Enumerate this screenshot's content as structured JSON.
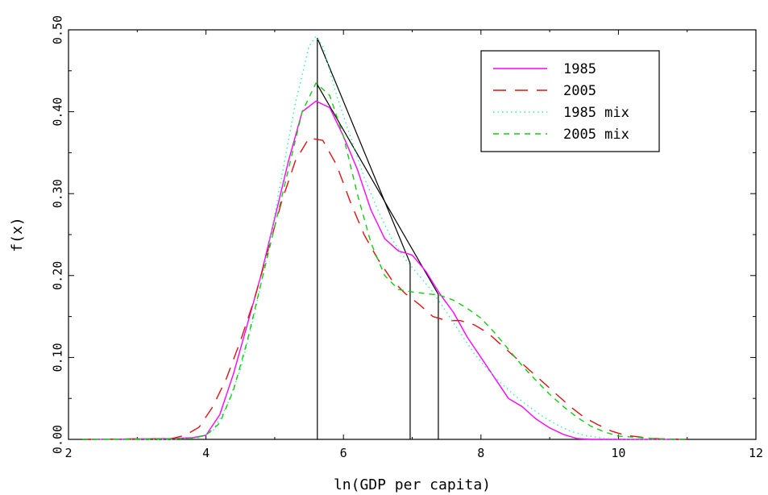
{
  "chart_data": {
    "type": "line",
    "title": "",
    "xlabel": "ln(GDP per capita)",
    "ylabel": "f(x)",
    "xlim": [
      2,
      12
    ],
    "ylim": [
      0,
      0.5
    ],
    "xticks": [
      2,
      4,
      6,
      8,
      10,
      12
    ],
    "xtick_labels": [
      "2",
      "4",
      "6",
      "8",
      "10",
      "12"
    ],
    "yticks": [
      0,
      0.1,
      0.2,
      0.3,
      0.4,
      0.5
    ],
    "ytick_labels": [
      "0.00",
      "0.10",
      "0.20",
      "0.30",
      "0.40",
      "0.50"
    ],
    "grid": false,
    "legend_position": "top-right",
    "series": [
      {
        "name": "1985",
        "color": "#ff00ff",
        "dash": "solid",
        "x": [
          2.2,
          3.5,
          3.8,
          4.0,
          4.2,
          4.4,
          4.6,
          4.8,
          5.0,
          5.2,
          5.4,
          5.6,
          5.8,
          6.0,
          6.2,
          6.4,
          6.6,
          6.8,
          7.0,
          7.2,
          7.4,
          7.6,
          7.8,
          8.0,
          8.2,
          8.4,
          8.6,
          8.8,
          9.0,
          9.2,
          9.4,
          9.6,
          10.0,
          11.0
        ],
        "y": [
          0,
          0.001,
          0.002,
          0.005,
          0.03,
          0.08,
          0.14,
          0.2,
          0.27,
          0.34,
          0.4,
          0.413,
          0.405,
          0.37,
          0.33,
          0.28,
          0.245,
          0.23,
          0.225,
          0.205,
          0.178,
          0.155,
          0.125,
          0.1,
          0.075,
          0.05,
          0.04,
          0.025,
          0.014,
          0.006,
          0.001,
          0,
          0,
          0
        ]
      },
      {
        "name": "2005",
        "color": "#dd1111",
        "dash": "long",
        "x": [
          2.2,
          3.5,
          3.7,
          3.9,
          4.1,
          4.3,
          4.5,
          4.7,
          4.9,
          5.1,
          5.3,
          5.5,
          5.7,
          5.9,
          6.1,
          6.3,
          6.5,
          6.7,
          6.9,
          7.1,
          7.3,
          7.5,
          7.7,
          7.9,
          8.1,
          8.3,
          8.5,
          8.7,
          8.9,
          9.1,
          9.3,
          9.5,
          9.7,
          9.9,
          10.1,
          10.5,
          11.0
        ],
        "y": [
          0,
          0.001,
          0.005,
          0.015,
          0.04,
          0.075,
          0.12,
          0.17,
          0.23,
          0.29,
          0.34,
          0.368,
          0.365,
          0.335,
          0.29,
          0.25,
          0.22,
          0.195,
          0.178,
          0.165,
          0.15,
          0.145,
          0.145,
          0.14,
          0.13,
          0.115,
          0.1,
          0.085,
          0.07,
          0.055,
          0.04,
          0.027,
          0.018,
          0.01,
          0.005,
          0.001,
          0
        ]
      },
      {
        "name": "1985 mix",
        "color": "#33ee99",
        "dash": "dot",
        "x": [
          2.2,
          3.5,
          3.9,
          4.1,
          4.3,
          4.5,
          4.7,
          4.9,
          5.1,
          5.3,
          5.5,
          5.6,
          5.7,
          5.9,
          6.1,
          6.3,
          6.5,
          6.7,
          6.9,
          7.1,
          7.3,
          7.5,
          7.7,
          7.9,
          8.1,
          8.3,
          8.5,
          8.7,
          8.9,
          9.1,
          9.3,
          9.5,
          9.8,
          10.5,
          11.0
        ],
        "y": [
          0,
          0.0,
          0.002,
          0.01,
          0.04,
          0.085,
          0.15,
          0.23,
          0.32,
          0.41,
          0.48,
          0.492,
          0.48,
          0.42,
          0.37,
          0.32,
          0.28,
          0.245,
          0.22,
          0.2,
          0.18,
          0.155,
          0.13,
          0.105,
          0.085,
          0.068,
          0.053,
          0.04,
          0.028,
          0.018,
          0.01,
          0.005,
          0.001,
          0,
          0
        ]
      },
      {
        "name": "2005 mix",
        "color": "#11cc11",
        "dash": "short",
        "x": [
          2.2,
          3.8,
          4.0,
          4.2,
          4.4,
          4.6,
          4.8,
          5.0,
          5.2,
          5.4,
          5.6,
          5.8,
          6.0,
          6.2,
          6.4,
          6.6,
          6.8,
          7.0,
          7.2,
          7.4,
          7.6,
          7.8,
          8.0,
          8.2,
          8.4,
          8.6,
          8.8,
          9.0,
          9.2,
          9.4,
          9.6,
          9.8,
          10.0,
          10.5,
          11.0
        ],
        "y": [
          0,
          0.001,
          0.005,
          0.02,
          0.06,
          0.12,
          0.19,
          0.26,
          0.33,
          0.4,
          0.435,
          0.42,
          0.37,
          0.3,
          0.24,
          0.2,
          0.183,
          0.18,
          0.178,
          0.176,
          0.17,
          0.16,
          0.148,
          0.13,
          0.11,
          0.09,
          0.072,
          0.055,
          0.04,
          0.027,
          0.016,
          0.009,
          0.004,
          0.001,
          0
        ]
      }
    ],
    "annotations": {
      "color": "#000000",
      "vertical_lines": [
        {
          "x": 5.62,
          "y": 0.49
        },
        {
          "x": 6.97,
          "y": 0.215
        },
        {
          "x": 7.38,
          "y": 0.177
        }
      ],
      "segments": [
        {
          "x1": 5.62,
          "y1": 0.49,
          "x2": 6.97,
          "y2": 0.215
        },
        {
          "x1": 5.62,
          "y1": 0.433,
          "x2": 7.38,
          "y2": 0.177
        }
      ]
    }
  }
}
